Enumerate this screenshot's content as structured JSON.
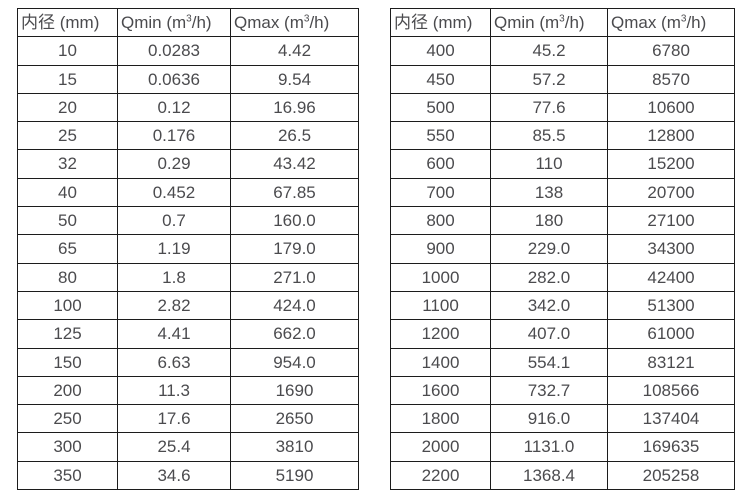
{
  "style": {
    "background": "#ffffff",
    "border_color": "#1c1c1c",
    "text_color": "#4b4b4e"
  },
  "columns": {
    "diameter": "内径 (mm)",
    "qmin": {
      "pre": "Qmin (m",
      "sup": "3",
      "post": "/h)"
    },
    "qmax": {
      "pre": "Qmax (m",
      "sup": "3",
      "post": "/h)"
    }
  },
  "tables": [
    {
      "name": "small-diameter-flow-rates",
      "rows": [
        [
          "10",
          "0.0283",
          "4.42"
        ],
        [
          "15",
          "0.0636",
          "9.54"
        ],
        [
          "20",
          "0.12",
          "16.96"
        ],
        [
          "25",
          "0.176",
          "26.5"
        ],
        [
          "32",
          "0.29",
          "43.42"
        ],
        [
          "40",
          "0.452",
          "67.85"
        ],
        [
          "50",
          "0.7",
          "160.0"
        ],
        [
          "65",
          "1.19",
          "179.0"
        ],
        [
          "80",
          "1.8",
          "271.0"
        ],
        [
          "100",
          "2.82",
          "424.0"
        ],
        [
          "125",
          "4.41",
          "662.0"
        ],
        [
          "150",
          "6.63",
          "954.0"
        ],
        [
          "200",
          "11.3",
          "1690"
        ],
        [
          "250",
          "17.6",
          "2650"
        ],
        [
          "300",
          "25.4",
          "3810"
        ],
        [
          "350",
          "34.6",
          "5190"
        ]
      ]
    },
    {
      "name": "large-diameter-flow-rates",
      "rows": [
        [
          "400",
          "45.2",
          "6780"
        ],
        [
          "450",
          "57.2",
          "8570"
        ],
        [
          "500",
          "77.6",
          "10600"
        ],
        [
          "550",
          "85.5",
          "12800"
        ],
        [
          "600",
          "110",
          "15200"
        ],
        [
          "700",
          "138",
          "20700"
        ],
        [
          "800",
          "180",
          "27100"
        ],
        [
          "900",
          "229.0",
          "34300"
        ],
        [
          "1000",
          "282.0",
          "42400"
        ],
        [
          "1100",
          "342.0",
          "51300"
        ],
        [
          "1200",
          "407.0",
          "61000"
        ],
        [
          "1400",
          "554.1",
          "83121"
        ],
        [
          "1600",
          "732.7",
          "108566"
        ],
        [
          "1800",
          "916.0",
          "137404"
        ],
        [
          "2000",
          "1131.0",
          "169635"
        ],
        [
          "2200",
          "1368.4",
          "205258"
        ]
      ]
    }
  ]
}
